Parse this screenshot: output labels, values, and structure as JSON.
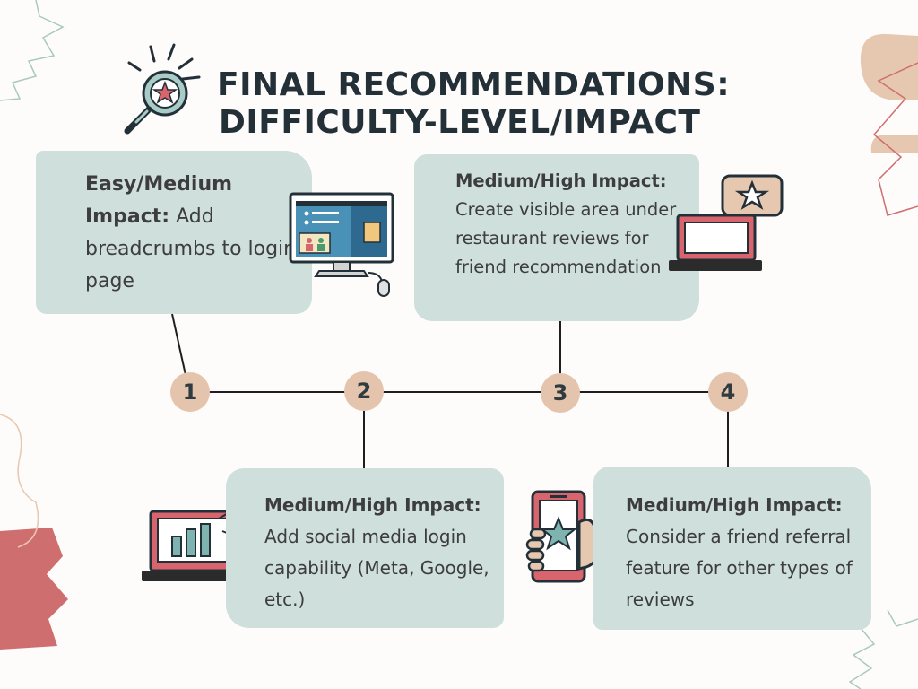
{
  "title": {
    "line1": "FINAL RECOMMENDATIONS:",
    "line2": "DIFFICULTY-LEVEL/IMPACT"
  },
  "nodes": [
    "1",
    "2",
    "3",
    "4"
  ],
  "cards": [
    {
      "heading": "Easy/Medium Impact:",
      "body": "Add breadcrumbs to login page"
    },
    {
      "heading": "Medium/High Impact:",
      "body": "Add social media login capability (Meta, Google, etc.)"
    },
    {
      "heading": "Medium/High Impact:",
      "body": "Create visible area under restaurant reviews for friend recommendation"
    },
    {
      "heading": "Medium/High Impact:",
      "body": "Consider a friend referral feature for other types of reviews"
    }
  ],
  "colors": {
    "card": "#cfdfdc",
    "node": "#e4c4ad",
    "title": "#233038",
    "accent_red": "#cf6e6e",
    "accent_tan": "#e6c7b0"
  },
  "icons": [
    "magnifier-star-icon",
    "desktop-computer-icon",
    "laptop-star-review-icon",
    "laptop-chart-icon",
    "phone-star-hand-icon"
  ]
}
